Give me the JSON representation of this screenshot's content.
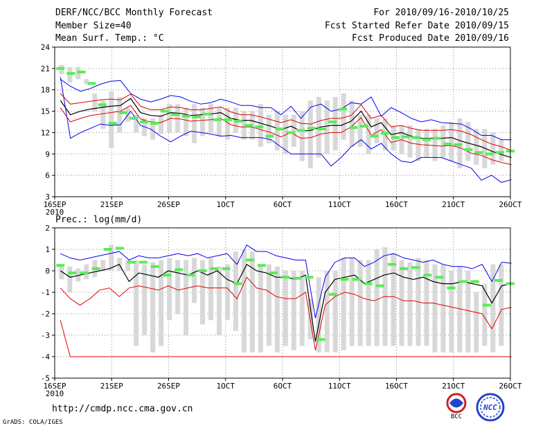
{
  "header": {
    "title": "DERF/NCC/BCC Monthly Forecast",
    "member": "Member Size=40",
    "variable": "Mean Surf. Temp.: °C",
    "period": "For 2010/09/16-2010/10/25",
    "started": "Fcst Started Refer Date 2010/09/15",
    "produced": "Fcst Produced Date 2010/09/16"
  },
  "footer": {
    "url": "http://cmdp.ncc.cma.gov.cn",
    "grads": "GrADS: COLA/IGES",
    "logo_bcc": "BCC",
    "logo_ncc": "NCC"
  },
  "colors": {
    "envelope": "#0000ee",
    "spread": "#dd0000",
    "mean": "#000000",
    "bar": "#d8d8d8",
    "marker": "#55ee55",
    "grid": "#888888"
  },
  "chart_data": [
    {
      "type": "line",
      "title": "Mean Surf. Temp.: °C",
      "ylim": [
        3,
        24
      ],
      "yticks": [
        "3",
        "6",
        "9",
        "12",
        "15",
        "18",
        "21",
        "24"
      ],
      "xlim": [
        0,
        40
      ],
      "xticks": [
        0,
        5,
        10,
        15,
        20,
        25,
        30,
        35,
        40
      ],
      "xticklabels": [
        "16SEP",
        "21SEP",
        "26SEP",
        "1OCT",
        "6OCT",
        "11OCT",
        "16OCT",
        "21OCT",
        "26OCT"
      ],
      "xsublabel": "2010",
      "days": 40,
      "series": [
        {
          "name": "max",
          "values": [
            19.8,
            11.2,
            12.0,
            12.6,
            13.2,
            13.0,
            13.1,
            15.0,
            13.0,
            12.5,
            11.5,
            10.7,
            11.5,
            12.2,
            12.0,
            11.8,
            11.5,
            11.6,
            11.3,
            11.3,
            11.3,
            11.0,
            10.0,
            9.0,
            9.0,
            9.0,
            9.0,
            7.3,
            8.5,
            10.0,
            11.0,
            9.7,
            10.5,
            9.0,
            8.0,
            7.8,
            8.5,
            8.5,
            8.5,
            8.0,
            7.5,
            7.0,
            5.3,
            6.0,
            5.0,
            5.4
          ]
        },
        {
          "name": "high",
          "values": [
            19.5,
            18.5,
            17.8,
            18.2,
            18.8,
            19.2,
            19.3,
            17.5,
            16.7,
            16.3,
            16.7,
            17.2,
            17.0,
            16.4,
            16.0,
            16.2,
            16.7,
            16.3,
            15.8,
            15.8,
            15.5,
            15.5,
            14.5,
            15.7,
            14.0,
            15.6,
            16.0,
            15.0,
            15.3,
            16.2,
            16.0,
            17.0,
            14.3,
            15.5,
            14.8,
            14.0,
            13.5,
            13.8,
            13.4,
            13.3,
            13.2,
            12.5,
            11.6,
            11.6,
            11.0,
            11.0
          ]
        },
        {
          "name": "upper",
          "values": [
            17.5,
            16.0,
            16.2,
            16.4,
            16.6,
            16.7,
            16.6,
            17.4,
            15.7,
            15.2,
            15.2,
            15.6,
            15.5,
            15.2,
            15.2,
            15.4,
            15.6,
            14.9,
            14.5,
            14.5,
            14.2,
            13.8,
            13.4,
            13.8,
            13.3,
            13.2,
            13.7,
            14.0,
            14.0,
            14.4,
            15.9,
            14.0,
            14.4,
            12.8,
            13.0,
            12.6,
            12.3,
            12.3,
            12.3,
            12.4,
            12.2,
            11.7,
            11.0,
            10.4,
            10.0,
            9.5
          ]
        },
        {
          "name": "mean",
          "values": [
            16.5,
            14.5,
            15.0,
            15.3,
            15.5,
            15.7,
            15.8,
            16.8,
            14.8,
            14.4,
            14.3,
            14.8,
            14.7,
            14.4,
            14.5,
            14.6,
            14.8,
            14.0,
            13.7,
            13.7,
            13.3,
            12.9,
            12.4,
            12.9,
            12.2,
            12.3,
            12.8,
            13.0,
            13.0,
            13.6,
            15.0,
            12.8,
            13.4,
            11.7,
            12.0,
            11.5,
            11.2,
            11.2,
            11.2,
            11.3,
            10.8,
            10.4,
            10.0,
            9.4,
            8.9,
            8.5
          ]
        },
        {
          "name": "lower",
          "values": [
            15.5,
            13.5,
            14.0,
            14.4,
            14.6,
            14.8,
            15.0,
            15.8,
            13.9,
            13.5,
            13.4,
            14.0,
            13.9,
            13.6,
            13.7,
            13.8,
            14.0,
            13.1,
            12.8,
            12.8,
            12.4,
            12.0,
            11.4,
            12.0,
            11.2,
            11.3,
            11.8,
            12.0,
            12.0,
            12.8,
            14.1,
            11.6,
            12.4,
            10.6,
            11.0,
            10.5,
            10.3,
            10.2,
            10.1,
            10.2,
            9.8,
            9.1,
            8.8,
            8.2,
            7.8,
            7.5
          ]
        }
      ],
      "bars": [
        [
          20.2,
          21.5
        ],
        [
          19.0,
          21.2
        ],
        [
          19.5,
          21.2
        ],
        [
          18.8,
          19.5
        ],
        [
          15.0,
          17.5
        ],
        [
          12.5,
          16.5
        ],
        [
          9.8,
          17.8
        ],
        [
          12.0,
          17.0
        ],
        [
          13.5,
          15.5
        ],
        [
          12.0,
          14.5
        ],
        [
          11.5,
          14.0
        ],
        [
          11.0,
          14.0
        ],
        [
          11.8,
          14.5
        ],
        [
          12.0,
          16.0
        ],
        [
          12.0,
          16.0
        ],
        [
          11.5,
          15.5
        ],
        [
          10.5,
          16.0
        ],
        [
          11.5,
          15.5
        ],
        [
          12.0,
          16.0
        ],
        [
          11.5,
          15.5
        ],
        [
          11.0,
          15.5
        ],
        [
          12.0,
          15.5
        ],
        [
          11.0,
          15.0
        ],
        [
          11.0,
          15.0
        ],
        [
          10.0,
          16.0
        ],
        [
          10.5,
          14.5
        ],
        [
          9.5,
          15.0
        ],
        [
          9.0,
          14.5
        ],
        [
          10.0,
          14.5
        ],
        [
          8.0,
          15.0
        ],
        [
          7.0,
          16.5
        ],
        [
          8.5,
          17.0
        ],
        [
          9.0,
          16.5
        ],
        [
          9.5,
          17.0
        ],
        [
          11.0,
          17.5
        ],
        [
          10.0,
          16.5
        ],
        [
          10.0,
          14.5
        ],
        [
          9.0,
          14.5
        ],
        [
          10.5,
          14.0
        ],
        [
          9.5,
          14.0
        ],
        [
          9.5,
          13.0
        ],
        [
          9.0,
          13.0
        ],
        [
          8.5,
          13.0
        ],
        [
          8.0,
          12.5
        ],
        [
          8.5,
          12.5
        ],
        [
          8.0,
          12.5
        ],
        [
          8.5,
          13.0
        ],
        [
          8.0,
          13.5
        ],
        [
          7.0,
          14.0
        ],
        [
          8.0,
          13.5
        ],
        [
          7.5,
          12.5
        ],
        [
          7.0,
          12.5
        ],
        [
          7.5,
          12.0
        ],
        [
          8.0,
          11.0
        ]
      ],
      "markers": [
        21.0,
        20.3,
        20.5,
        18.9,
        15.9,
        13.3,
        14.8,
        14.0,
        13.5,
        13.3,
        15.0,
        14.5,
        14.3,
        14.2,
        14.6,
        13.8,
        13.8,
        13.6,
        13.0,
        12.8,
        11.5,
        12.5,
        12.0,
        12.3,
        12.6,
        12.5,
        13.5,
        15.3,
        12.7,
        12.9,
        11.5,
        11.9,
        11.3,
        11.4,
        11.3,
        11.0,
        11.2,
        10.4,
        10.3,
        9.6,
        9.2,
        9.0,
        9.2,
        9.4
      ]
    },
    {
      "type": "line",
      "title": "Prec.: log(mm/d)",
      "ylim": [
        -5,
        2
      ],
      "yticks": [
        "-5",
        "-4",
        "-3",
        "-2",
        "-1",
        "0",
        "1",
        "2"
      ],
      "xlim": [
        0,
        40
      ],
      "xticks": [
        0,
        5,
        10,
        15,
        20,
        25,
        30,
        35,
        40
      ],
      "xticklabels": [
        "16SEP",
        "21SEP",
        "26SEP",
        "1OCT",
        "6OCT",
        "11OCT",
        "16OCT",
        "21OCT",
        "26OCT"
      ],
      "xsublabel": "2010",
      "days": 40,
      "series": [
        {
          "name": "max",
          "values": [
            0.8,
            0.6,
            0.5,
            0.6,
            0.7,
            0.8,
            0.9,
            0.5,
            0.7,
            0.6,
            0.6,
            0.7,
            0.8,
            0.7,
            0.8,
            0.6,
            0.7,
            0.8,
            0.3,
            1.2,
            0.9,
            0.9,
            0.7,
            0.6,
            0.5,
            0.5,
            -2.2,
            -0.3,
            0.4,
            0.6,
            0.6,
            0.2,
            0.4,
            0.7,
            0.8,
            0.6,
            0.5,
            0.4,
            0.5,
            0.3,
            0.2,
            0.2,
            0.1,
            0.3,
            -0.5,
            0.4,
            0.35
          ]
        },
        {
          "name": "mean",
          "values": [
            0.0,
            -0.3,
            -0.2,
            -0.1,
            0.0,
            0.1,
            0.3,
            -0.5,
            -0.1,
            -0.2,
            -0.3,
            0.0,
            -0.1,
            -0.2,
            0.0,
            -0.2,
            0.0,
            -0.4,
            -0.6,
            0.3,
            0.0,
            -0.1,
            -0.3,
            -0.3,
            -0.4,
            -0.2,
            -3.3,
            -1.0,
            -0.4,
            -0.3,
            -0.2,
            -0.6,
            -0.4,
            -0.2,
            -0.1,
            -0.3,
            -0.4,
            -0.3,
            -0.5,
            -0.6,
            -0.6,
            -0.5,
            -0.6,
            -0.7,
            -1.5,
            -0.7,
            -0.6
          ]
        },
        {
          "name": "min",
          "values": [
            -0.8,
            -1.3,
            -1.6,
            -1.3,
            -0.9,
            -0.8,
            -1.2,
            -0.8,
            -0.7,
            -0.8,
            -0.9,
            -0.7,
            -0.9,
            -0.8,
            -0.7,
            -0.8,
            -0.8,
            -0.8,
            -1.3,
            -0.3,
            -0.8,
            -0.9,
            -1.2,
            -1.3,
            -1.3,
            -1.0,
            -3.7,
            -1.6,
            -1.2,
            -1.0,
            -1.1,
            -1.3,
            -1.4,
            -1.2,
            -1.2,
            -1.4,
            -1.4,
            -1.5,
            -1.5,
            -1.6,
            -1.7,
            -1.8,
            -1.9,
            -2.0,
            -2.7,
            -1.8,
            -1.7
          ]
        },
        {
          "name": "floor",
          "values": [
            -2.3,
            -4.0,
            -4.0,
            -4.0,
            -4.0,
            -4.0,
            -4.0,
            -4.0,
            -4.0,
            -4.0,
            -4.0,
            -4.0,
            -4.0,
            -4.0,
            -4.0,
            -4.0,
            -4.0,
            -4.0,
            -4.0,
            -4.0,
            -4.0,
            -4.0,
            -4.0,
            -4.0,
            -4.0,
            -4.0,
            -4.0,
            -4.0,
            -4.0,
            -4.0,
            -4.0,
            -4.0,
            -4.0,
            -4.0,
            -4.0,
            -4.0,
            -4.0,
            -4.0,
            -4.0,
            -4.0,
            -4.0,
            -4.0,
            -4.0,
            -4.0,
            -4.0,
            -4.0,
            -4.0
          ]
        }
      ],
      "bars": [
        [
          -0.4,
          0.3
        ],
        [
          -1.0,
          0.2
        ],
        [
          -0.5,
          0.1
        ],
        [
          -0.4,
          0.3
        ],
        [
          -0.3,
          0.5
        ],
        [
          0.0,
          0.5
        ],
        [
          0.0,
          1.2
        ],
        [
          0.0,
          0.6
        ],
        [
          0.0,
          0.5
        ],
        [
          -3.5,
          0.5
        ],
        [
          -3.0,
          0.3
        ],
        [
          -3.8,
          0.4
        ],
        [
          -3.5,
          0.5
        ],
        [
          -2.3,
          0.6
        ],
        [
          -2.0,
          0.5
        ],
        [
          -3.0,
          0.5
        ],
        [
          -1.5,
          0.6
        ],
        [
          -2.5,
          0.5
        ],
        [
          -2.3,
          0.6
        ],
        [
          -3.0,
          0.2
        ],
        [
          -2.3,
          0.3
        ],
        [
          -2.8,
          0.9
        ],
        [
          -3.8,
          1.0
        ],
        [
          -3.8,
          0.9
        ],
        [
          -3.8,
          0.3
        ],
        [
          -3.5,
          0.3
        ],
        [
          -3.8,
          0.2
        ],
        [
          -3.5,
          0.0
        ],
        [
          -3.7,
          0.0
        ],
        [
          -3.5,
          0.0
        ],
        [
          -3.2,
          -1.3
        ],
        [
          -3.8,
          -0.3
        ],
        [
          -3.8,
          0.0
        ],
        [
          -3.8,
          0.0
        ],
        [
          -3.7,
          0.6
        ],
        [
          -3.5,
          0.6
        ],
        [
          -3.5,
          0.5
        ],
        [
          -3.5,
          0.5
        ],
        [
          -3.5,
          1.0
        ],
        [
          -3.5,
          1.1
        ],
        [
          -3.5,
          0.8
        ],
        [
          -3.5,
          0.5
        ],
        [
          -3.5,
          0.4
        ],
        [
          -3.5,
          0.6
        ],
        [
          -3.5,
          0.5
        ],
        [
          -3.8,
          0.3
        ],
        [
          -3.8,
          0.3
        ],
        [
          -3.8,
          0.0
        ],
        [
          -3.8,
          0.2
        ],
        [
          -3.8,
          0.0
        ],
        [
          -3.8,
          -1.0
        ],
        [
          -3.5,
          -0.6
        ],
        [
          -3.8,
          0.3
        ],
        [
          -3.5,
          0.3
        ]
      ],
      "markers": [
        0.25,
        -0.1,
        -0.1,
        0.1,
        1.0,
        1.05,
        0.4,
        0.4,
        0.2,
        -0.2,
        0.05,
        -0.2,
        0.0,
        0.1,
        0.1,
        -0.6,
        0.5,
        0.25,
        -0.1,
        -0.3,
        -0.35,
        -0.3,
        -3.2,
        -1.1,
        -0.4,
        -0.4,
        -0.6,
        -0.7,
        0.3,
        0.1,
        0.15,
        -0.2,
        -0.3,
        -0.8,
        -0.5,
        -0.5,
        -1.6,
        -0.45,
        -0.6
      ]
    }
  ]
}
